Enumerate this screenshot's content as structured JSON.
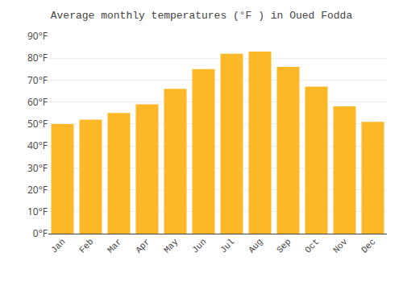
{
  "chart_data": {
    "type": "bar",
    "title": "Average monthly temperatures (°F ) in Oued Fodda",
    "categories": [
      "Jan",
      "Feb",
      "Mar",
      "Apr",
      "May",
      "Jun",
      "Jul",
      "Aug",
      "Sep",
      "Oct",
      "Nov",
      "Dec"
    ],
    "values": [
      50,
      52,
      55,
      59,
      66,
      75,
      82,
      83,
      76,
      67,
      58,
      51
    ],
    "color": "#FDB827",
    "ylim": [
      0,
      90
    ],
    "yticks": [
      {
        "value": 0,
        "label": "0°F"
      },
      {
        "value": 10,
        "label": "10°F"
      },
      {
        "value": 20,
        "label": "20°F"
      },
      {
        "value": 30,
        "label": "30°F"
      },
      {
        "value": 40,
        "label": "40°F"
      },
      {
        "value": 50,
        "label": "50°F"
      },
      {
        "value": 60,
        "label": "60°F"
      },
      {
        "value": 70,
        "label": "70°F"
      },
      {
        "value": 80,
        "label": "80°F"
      },
      {
        "value": 90,
        "label": "90°F"
      }
    ],
    "grid": true
  }
}
